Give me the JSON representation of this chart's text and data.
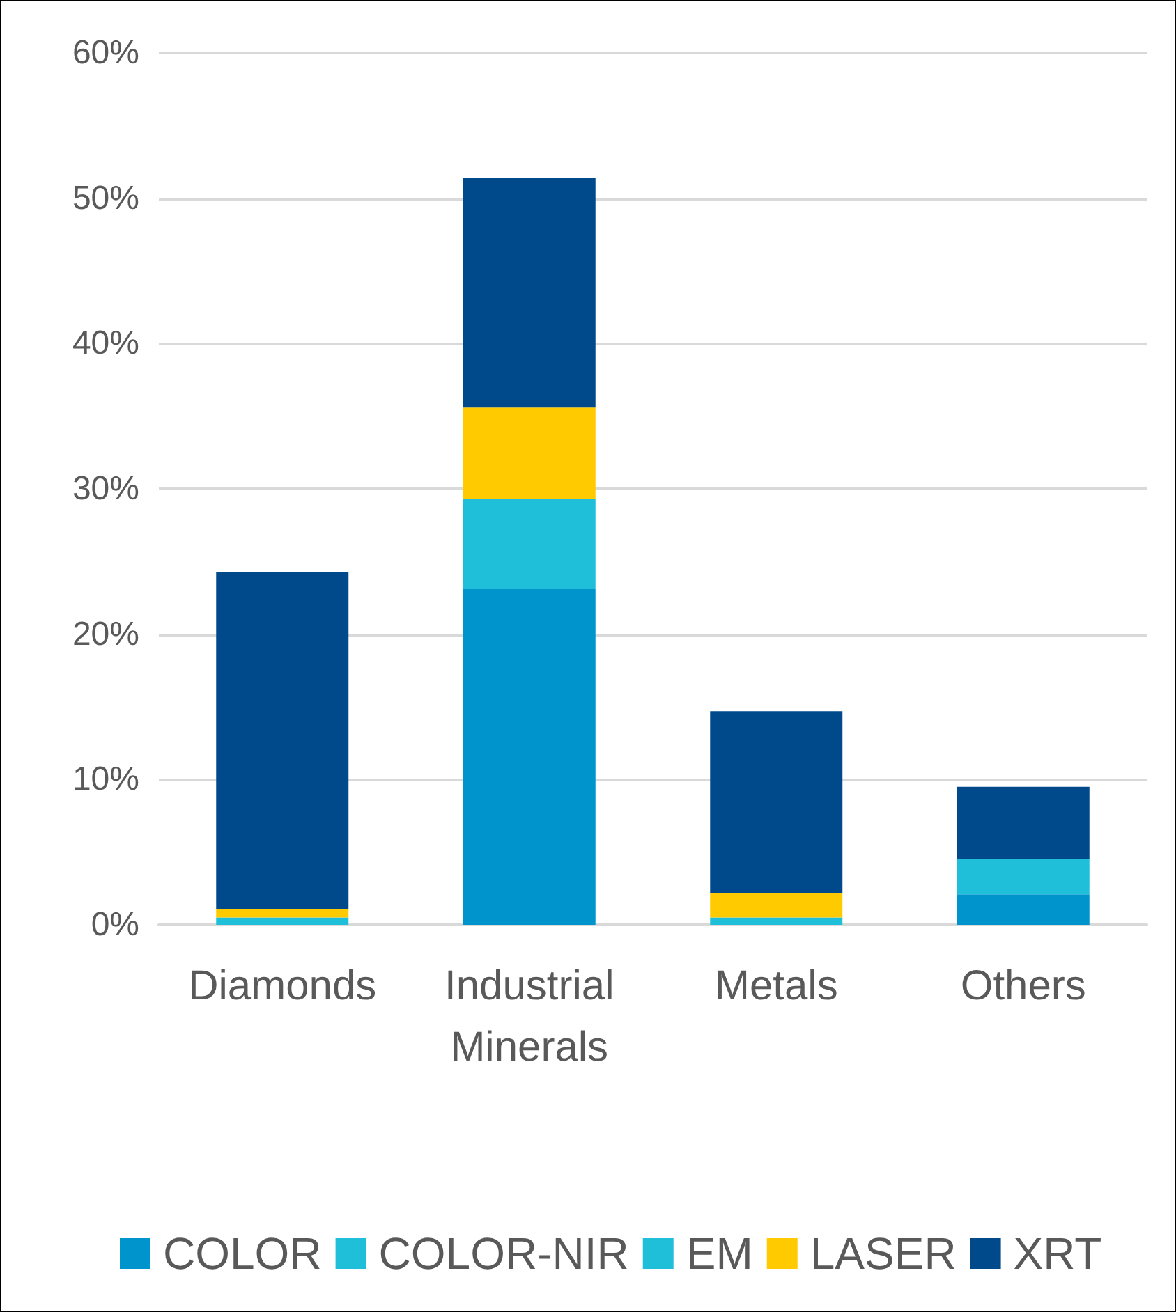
{
  "chart_data": {
    "type": "bar",
    "stacked": true,
    "categories": [
      "Diamonds",
      "Industrial Minerals",
      "Metals",
      "Others"
    ],
    "series": [
      {
        "name": "COLOR",
        "color": "#0094cd",
        "values": [
          0,
          23.1,
          0,
          2.1
        ]
      },
      {
        "name": "COLOR-NIR",
        "color": "#20bfd9",
        "values": [
          0.5,
          6.2,
          0.5,
          2.4
        ]
      },
      {
        "name": "EM",
        "color": "#20bfd9",
        "values": [
          0,
          0,
          0,
          0
        ]
      },
      {
        "name": "LASER",
        "color": "#ffcb00",
        "values": [
          0.6,
          6.3,
          1.7,
          0
        ]
      },
      {
        "name": "XRT",
        "color": "#004a8c",
        "values": [
          23.2,
          15.8,
          12.5,
          5.0
        ]
      }
    ],
    "ylim": [
      0,
      60
    ],
    "yticks": [
      {
        "value": 0,
        "label": "0%"
      },
      {
        "value": 10,
        "label": "10%"
      },
      {
        "value": 20,
        "label": "20%"
      },
      {
        "value": 30,
        "label": "30%"
      },
      {
        "value": 40,
        "label": "40%"
      },
      {
        "value": 50,
        "label": "50%"
      },
      {
        "value": 60,
        "label": "60%"
      }
    ],
    "grid": "y",
    "legend": "bottom"
  }
}
